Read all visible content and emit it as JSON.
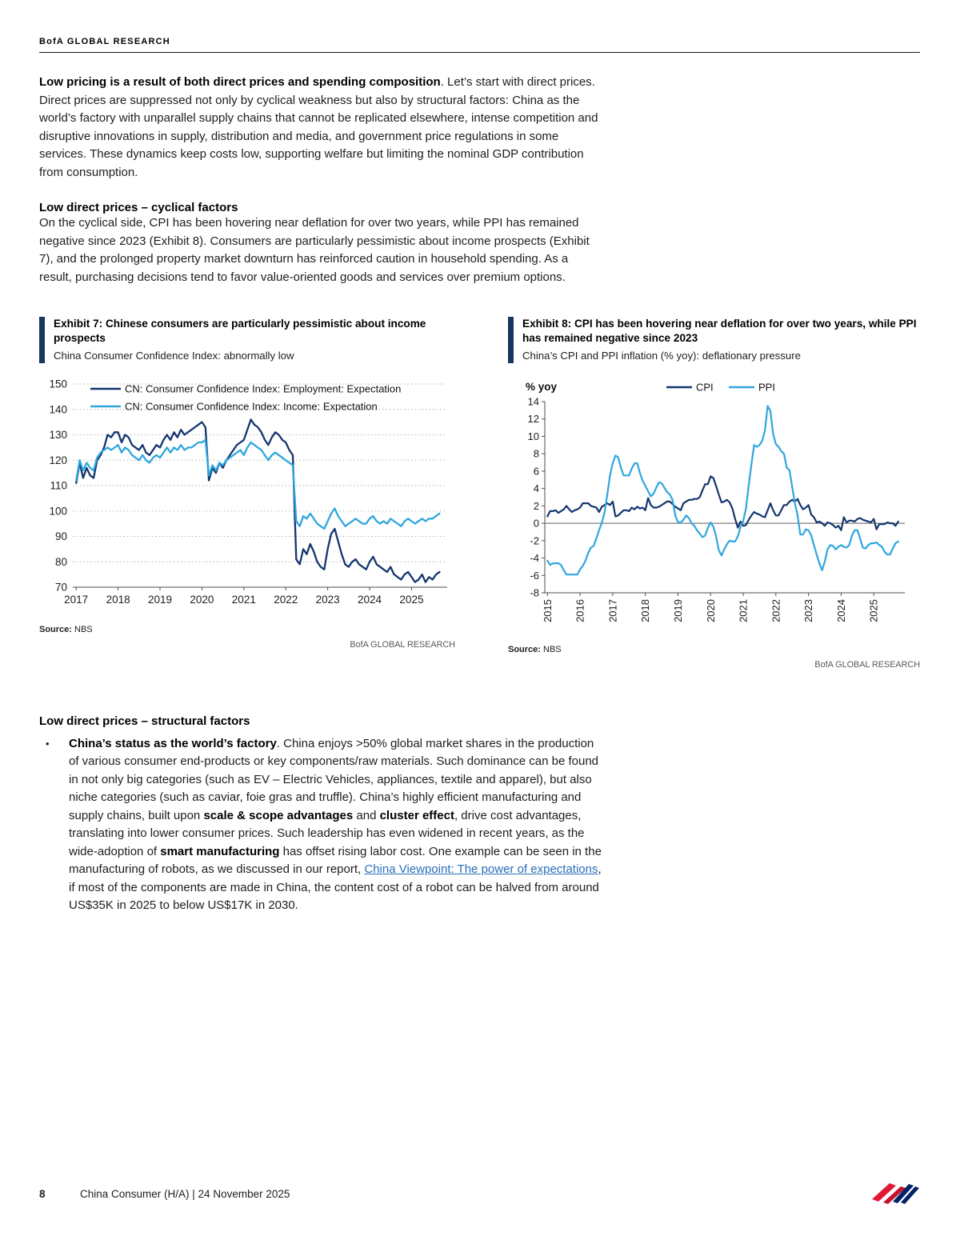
{
  "header": {
    "brand": "BofA GLOBAL RESEARCH"
  },
  "intro": {
    "lead_bold": "Low pricing is a result of both direct prices and spending composition",
    "rest": ". Let’s start with direct prices. Direct prices are suppressed not only by cyclical weakness but also by structural factors: China as the world’s factory with unparallel supply chains that cannot be replicated elsewhere, intense competition and disruptive innovations in supply, distribution and media, and government price regulations in some services. These dynamics keep costs low, supporting welfare but limiting the nominal GDP contribution from consumption."
  },
  "cyclical": {
    "heading": "Low direct prices – cyclical factors",
    "body": "On the cyclical side, CPI has been hovering near deflation for over two years, while PPI has remained negative since 2023 (Exhibit 8). Consumers are particularly pessimistic about income prospects (Exhibit 7), and the prolonged property market downturn has reinforced caution in household spending. As a result, purchasing decisions tend to favor value-oriented goods and services over premium options."
  },
  "exhibit7": {
    "title": "Exhibit 7: Chinese consumers are particularly pessimistic about income prospects",
    "subtitle": "China Consumer Confidence Index: abnormally low",
    "source_label": "Source:",
    "source_value": " NBS",
    "credit": "BofA GLOBAL RESEARCH"
  },
  "exhibit8": {
    "title": "Exhibit 8: CPI has been hovering near deflation for over two years, while PPI has remained negative since 2023",
    "subtitle": "China’s CPI and PPI inflation (% yoy): deflationary pressure",
    "source_label": "Source:",
    "source_value": " NBS",
    "credit": "BofA GLOBAL RESEARCH"
  },
  "structural": {
    "heading": "Low direct prices – structural factors",
    "s1": "China’s status as the world’s factory",
    "s2": ". China enjoys >50% global market shares in the production of various consumer end-products or key components/raw materials. Such dominance can be found in not only big categories (such as EV – Electric Vehicles, appliances, textile and apparel), but also niche categories (such as caviar, foie gras and truffle).  China’s highly efficient manufacturing and supply chains, built upon ",
    "s3": "scale & scope advantages",
    "s4": " and ",
    "s5": "cluster effect",
    "s6": ", drive cost advantages, translating into lower consumer prices. Such leadership has even widened in recent years, as the wide-adoption of ",
    "s7": "smart manufacturing",
    "s8": " has offset rising labor cost. One example can be seen in the manufacturing of robots, as we discussed in our report, ",
    "s9": "China Viewpoint: The power of expectations",
    "s10": ", if most of the components are made in China, the content cost of a robot can be halved from around US$35K in 2025 to below US$17K in 2030."
  },
  "footer": {
    "page": "8",
    "text": "China Consumer (H/A) | 24 November 2025"
  },
  "colors": {
    "navy": "#14356f",
    "light_blue": "#2fa6de",
    "exhibit_bar": "#17375e",
    "link_blue": "#2a6ebb",
    "logo_red": "#e31837",
    "logo_blue": "#012169"
  },
  "chart_data": [
    {
      "type": "line",
      "title": "Exhibit 7: Chinese consumers are particularly pessimistic about income prospects",
      "subtitle": "China Consumer Confidence Index: abnormally low",
      "x_start": 2017.0,
      "x_step": 0.0833333,
      "xlim": [
        2016.92,
        2025.85
      ],
      "ylim": [
        70,
        150
      ],
      "yticks": [
        70,
        80,
        90,
        100,
        110,
        120,
        130,
        140,
        150
      ],
      "xticks": [
        2017,
        2018,
        2019,
        2020,
        2021,
        2022,
        2023,
        2024,
        2025
      ],
      "grid": true,
      "legend_position": "top-left",
      "series": [
        {
          "name": "CN: Consumer Confidence Index: Employment: Expectation",
          "color": "#14356f",
          "values": [
            111,
            119,
            113,
            117,
            114,
            113,
            120,
            122,
            125,
            130,
            129,
            131,
            131,
            127,
            130,
            129,
            126,
            125,
            124,
            126,
            123,
            122,
            124,
            126,
            125,
            128,
            130,
            128,
            131,
            129,
            132,
            130,
            131,
            132,
            133,
            134,
            135,
            133,
            112,
            117,
            115,
            119,
            117,
            120,
            122,
            124,
            126,
            127,
            128,
            132,
            136,
            134,
            133,
            131,
            128,
            126,
            129,
            131,
            130,
            128,
            127,
            124,
            122,
            81,
            79,
            85,
            83,
            87,
            84,
            80,
            78,
            77,
            85,
            91,
            93,
            88,
            83,
            79,
            78,
            80,
            81,
            79,
            78,
            77,
            80,
            82,
            79,
            78,
            77,
            76,
            78,
            75,
            74,
            73,
            75,
            76,
            74,
            72,
            73,
            75,
            72,
            74,
            73,
            75,
            76
          ]
        },
        {
          "name": "CN: Consumer Confidence Index: Income: Expectation",
          "color": "#2fa6de",
          "values": [
            112,
            120,
            116,
            119,
            117,
            116,
            121,
            123,
            124,
            125,
            124,
            125,
            126,
            123,
            125,
            124,
            122,
            121,
            120,
            122,
            120,
            119,
            121,
            122,
            121,
            123,
            125,
            123,
            125,
            124,
            126,
            124,
            125,
            125,
            126,
            127,
            127,
            128,
            114,
            118,
            116,
            119,
            118,
            120,
            121,
            122,
            123,
            124,
            122,
            125,
            127,
            126,
            125,
            124,
            122,
            120,
            122,
            123,
            122,
            121,
            120,
            119,
            118,
            96,
            94,
            98,
            97,
            99,
            97,
            95,
            94,
            93,
            96,
            99,
            101,
            98,
            96,
            94,
            95,
            96,
            97,
            96,
            95,
            95,
            97,
            98,
            96,
            95,
            96,
            95,
            97,
            96,
            95,
            94,
            96,
            97,
            96,
            95,
            96,
            97,
            96,
            97,
            97,
            98,
            99
          ]
        }
      ]
    },
    {
      "type": "line",
      "title": "Exhibit 8: CPI has been hovering near deflation for over two years, while PPI has remained negative since 2023",
      "subtitle": "China’s CPI and PPI inflation (% yoy): deflationary pressure",
      "ylabel": "% yoy",
      "x_start": 2015.0,
      "x_step": 0.0833333,
      "xlim": [
        2014.92,
        2025.95
      ],
      "ylim": [
        -8,
        14
      ],
      "yticks": [
        -8,
        -6,
        -4,
        -2,
        0,
        2,
        4,
        6,
        8,
        10,
        12,
        14
      ],
      "xticks": [
        2015,
        2016,
        2017,
        2018,
        2019,
        2020,
        2021,
        2022,
        2023,
        2024,
        2025
      ],
      "grid": false,
      "zero_line": true,
      "legend_position": "top",
      "series": [
        {
          "name": "CPI",
          "color": "#14356f",
          "values": [
            0.8,
            1.4,
            1.4,
            1.5,
            1.2,
            1.4,
            1.6,
            2.0,
            1.6,
            1.3,
            1.5,
            1.6,
            1.8,
            2.3,
            2.3,
            2.3,
            2.0,
            1.9,
            1.8,
            1.3,
            1.9,
            2.1,
            2.3,
            2.1,
            2.5,
            0.8,
            0.9,
            1.2,
            1.5,
            1.5,
            1.4,
            1.8,
            1.6,
            1.9,
            1.7,
            1.8,
            1.5,
            2.9,
            2.1,
            1.8,
            1.8,
            1.9,
            2.1,
            2.3,
            2.5,
            2.5,
            2.2,
            1.9,
            1.7,
            1.5,
            2.3,
            2.5,
            2.7,
            2.7,
            2.8,
            2.8,
            3.0,
            3.8,
            4.5,
            4.5,
            5.4,
            5.2,
            4.3,
            3.3,
            2.4,
            2.5,
            2.7,
            2.4,
            1.7,
            0.5,
            -0.5,
            0.2,
            -0.3,
            -0.2,
            0.4,
            0.9,
            1.3,
            1.1,
            1.0,
            0.8,
            0.7,
            1.5,
            2.3,
            1.5,
            0.9,
            0.9,
            1.5,
            2.1,
            2.1,
            2.5,
            2.7,
            2.5,
            2.8,
            2.1,
            1.6,
            1.8,
            2.1,
            1.0,
            0.7,
            0.1,
            0.2,
            0.0,
            -0.3,
            0.1,
            0.0,
            -0.2,
            -0.5,
            -0.3,
            -0.8,
            0.7,
            0.1,
            0.3,
            0.3,
            0.2,
            0.5,
            0.6,
            0.4,
            0.3,
            0.2,
            0.1,
            0.5,
            -0.7,
            -0.1,
            -0.1,
            -0.1,
            0.1,
            0.0,
            0.0,
            -0.3,
            0.2
          ]
        },
        {
          "name": "PPI",
          "color": "#2fa6de",
          "values": [
            -4.3,
            -4.8,
            -4.6,
            -4.6,
            -4.6,
            -4.8,
            -5.4,
            -5.9,
            -5.9,
            -5.9,
            -5.9,
            -5.9,
            -5.3,
            -4.9,
            -4.3,
            -3.4,
            -2.8,
            -2.6,
            -1.7,
            -0.8,
            0.1,
            1.2,
            3.3,
            5.5,
            6.9,
            7.8,
            7.6,
            6.4,
            5.5,
            5.5,
            5.5,
            6.3,
            6.9,
            6.9,
            5.8,
            4.9,
            4.3,
            3.7,
            3.1,
            3.4,
            4.1,
            4.7,
            4.6,
            4.1,
            3.6,
            3.3,
            2.7,
            0.9,
            0.1,
            0.1,
            0.4,
            0.9,
            0.6,
            0.0,
            -0.3,
            -0.8,
            -1.2,
            -1.6,
            -1.4,
            -0.5,
            0.1,
            -0.4,
            -1.5,
            -3.1,
            -3.7,
            -3.0,
            -2.4,
            -2.0,
            -2.1,
            -2.1,
            -1.5,
            -0.4,
            0.3,
            1.7,
            4.4,
            6.8,
            9.0,
            8.8,
            9.0,
            9.5,
            10.7,
            13.5,
            12.9,
            10.3,
            9.1,
            8.8,
            8.3,
            8.0,
            6.4,
            6.1,
            4.2,
            2.3,
            0.9,
            -1.3,
            -1.3,
            -0.7,
            -0.8,
            -1.4,
            -2.5,
            -3.6,
            -4.6,
            -5.4,
            -4.4,
            -3.0,
            -2.5,
            -2.6,
            -3.0,
            -2.7,
            -2.5,
            -2.7,
            -2.8,
            -2.5,
            -1.4,
            -0.8,
            -0.8,
            -1.8,
            -2.8,
            -2.9,
            -2.5,
            -2.3,
            -2.3,
            -2.2,
            -2.5,
            -2.7,
            -3.3,
            -3.6,
            -3.6,
            -2.9,
            -2.3,
            -2.1
          ]
        }
      ]
    }
  ]
}
